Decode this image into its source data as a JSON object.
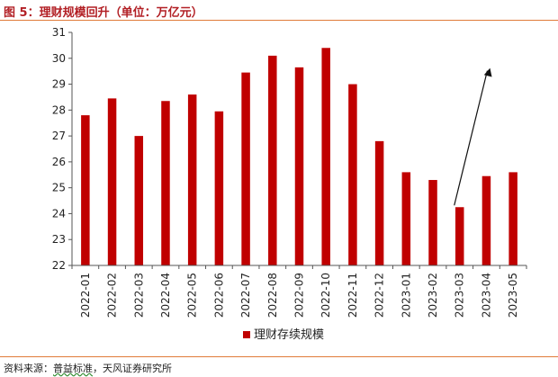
{
  "header": {
    "title": "图 5：理财规模回升（单位：万亿元）"
  },
  "source": {
    "prefix": "资料来源：",
    "highlight": "普益标准",
    "rest": "，天风证券研究所"
  },
  "colors": {
    "bar": "#c00000",
    "title": "#b21f24",
    "rule": "#e07b3a",
    "axis": "#555555"
  },
  "chart_data": {
    "type": "bar",
    "title": "",
    "xlabel": "",
    "ylabel": "",
    "categories": [
      "2022-01",
      "2022-02",
      "2022-03",
      "2022-04",
      "2022-05",
      "2022-06",
      "2022-07",
      "2022-08",
      "2022-09",
      "2022-10",
      "2022-11",
      "2022-12",
      "2023-01",
      "2023-02",
      "2023-03",
      "2023-04",
      "2023-05"
    ],
    "series": [
      {
        "name": "理财存续规模",
        "values": [
          27.8,
          28.45,
          27.0,
          28.35,
          28.6,
          27.95,
          29.45,
          30.1,
          29.65,
          30.4,
          29.0,
          26.8,
          25.6,
          25.3,
          24.25,
          25.45,
          25.6
        ]
      }
    ],
    "ylim": [
      22,
      31
    ],
    "yticks": [
      22,
      23,
      24,
      25,
      26,
      27,
      28,
      29,
      30,
      31
    ],
    "grid": false,
    "legend": "bottom-center",
    "annotations": [
      {
        "type": "arrow",
        "from": "2023-03",
        "to": "2023-04"
      }
    ]
  }
}
